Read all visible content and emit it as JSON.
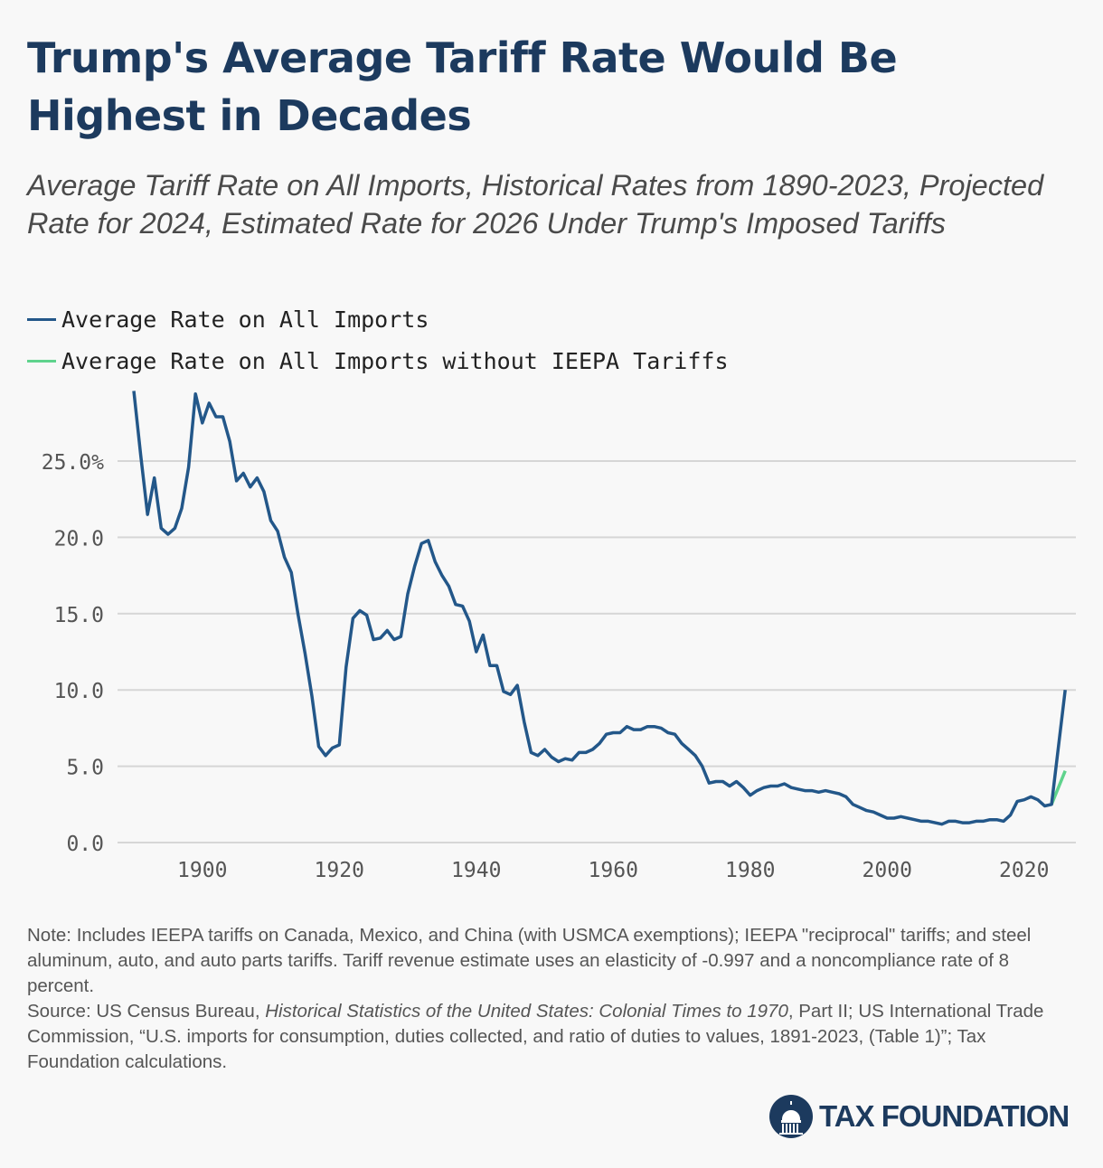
{
  "title": "Trump's Average Tariff Rate Would Be Highest in Decades",
  "subtitle": "Average Tariff Rate on All Imports, Historical Rates from 1890-2023, Projected Rate for 2024, Estimated Rate for 2026 Under Trump's Imposed Tariffs",
  "notes": {
    "note": "Note: Includes IEEPA tariffs on Canada, Mexico, and China (with USMCA exemptions); IEEPA \"reciprocal\" tariffs; and steel aluminum, auto, and auto parts tariffs. Tariff revenue estimate uses an elasticity of -0.997 and a noncompliance rate of 8 percent.",
    "source_prefix": "Source: US Census Bureau, ",
    "source_italic": "Historical Statistics of the United States: Colonial Times to 1970",
    "source_suffix": ", Part II; US International Trade Commission, “U.S. imports for consumption, duties collected, and ratio of duties to values, 1891-2023, (Table 1)”; Tax Foundation calculations."
  },
  "logo": {
    "text": "TAX FOUNDATION",
    "icon": "capitol-dome-icon"
  },
  "chart_data": {
    "type": "line",
    "title": "",
    "xlabel": "",
    "ylabel": "",
    "xlim": [
      1890,
      2026
    ],
    "ylim": [
      0,
      30
    ],
    "grid": "horizontal",
    "legend": "top-left",
    "x_ticks": [
      "1900",
      "1920",
      "1940",
      "1960",
      "1980",
      "2000",
      "2020"
    ],
    "y_ticks": [
      "0.0",
      "5.0",
      "10.0",
      "15.0",
      "20.0",
      "25.0%"
    ],
    "y_tick_values": [
      0,
      5,
      10,
      15,
      20,
      25
    ],
    "series": [
      {
        "name": "Average Rate on All Imports",
        "color": "#235789",
        "points": [
          [
            1890,
            29.6
          ],
          [
            1891,
            25.4
          ],
          [
            1892,
            21.5
          ],
          [
            1893,
            23.9
          ],
          [
            1894,
            20.6
          ],
          [
            1895,
            20.2
          ],
          [
            1896,
            20.6
          ],
          [
            1897,
            21.9
          ],
          [
            1898,
            24.6
          ],
          [
            1899,
            29.4
          ],
          [
            1900,
            27.5
          ],
          [
            1901,
            28.8
          ],
          [
            1902,
            27.9
          ],
          [
            1903,
            27.9
          ],
          [
            1904,
            26.3
          ],
          [
            1905,
            23.7
          ],
          [
            1906,
            24.2
          ],
          [
            1907,
            23.3
          ],
          [
            1908,
            23.9
          ],
          [
            1909,
            23.0
          ],
          [
            1910,
            21.1
          ],
          [
            1911,
            20.4
          ],
          [
            1912,
            18.7
          ],
          [
            1913,
            17.7
          ],
          [
            1914,
            14.9
          ],
          [
            1915,
            12.4
          ],
          [
            1916,
            9.6
          ],
          [
            1917,
            6.3
          ],
          [
            1918,
            5.7
          ],
          [
            1919,
            6.2
          ],
          [
            1920,
            6.4
          ],
          [
            1921,
            11.5
          ],
          [
            1922,
            14.7
          ],
          [
            1923,
            15.2
          ],
          [
            1924,
            14.9
          ],
          [
            1925,
            13.3
          ],
          [
            1926,
            13.4
          ],
          [
            1927,
            13.9
          ],
          [
            1928,
            13.3
          ],
          [
            1929,
            13.5
          ],
          [
            1930,
            16.3
          ],
          [
            1931,
            18.1
          ],
          [
            1932,
            19.6
          ],
          [
            1933,
            19.8
          ],
          [
            1934,
            18.4
          ],
          [
            1935,
            17.5
          ],
          [
            1936,
            16.8
          ],
          [
            1937,
            15.6
          ],
          [
            1938,
            15.5
          ],
          [
            1939,
            14.5
          ],
          [
            1940,
            12.5
          ],
          [
            1941,
            13.6
          ],
          [
            1942,
            11.6
          ],
          [
            1943,
            11.6
          ],
          [
            1944,
            9.9
          ],
          [
            1945,
            9.7
          ],
          [
            1946,
            10.3
          ],
          [
            1947,
            7.9
          ],
          [
            1948,
            5.9
          ],
          [
            1949,
            5.7
          ],
          [
            1950,
            6.1
          ],
          [
            1951,
            5.6
          ],
          [
            1952,
            5.3
          ],
          [
            1953,
            5.5
          ],
          [
            1954,
            5.4
          ],
          [
            1955,
            5.9
          ],
          [
            1956,
            5.9
          ],
          [
            1957,
            6.1
          ],
          [
            1958,
            6.5
          ],
          [
            1959,
            7.1
          ],
          [
            1960,
            7.2
          ],
          [
            1961,
            7.2
          ],
          [
            1962,
            7.6
          ],
          [
            1963,
            7.4
          ],
          [
            1964,
            7.4
          ],
          [
            1965,
            7.6
          ],
          [
            1966,
            7.6
          ],
          [
            1967,
            7.5
          ],
          [
            1968,
            7.2
          ],
          [
            1969,
            7.1
          ],
          [
            1970,
            6.5
          ],
          [
            1971,
            6.1
          ],
          [
            1972,
            5.7
          ],
          [
            1973,
            5.0
          ],
          [
            1974,
            3.9
          ],
          [
            1975,
            4.0
          ],
          [
            1976,
            4.0
          ],
          [
            1977,
            3.7
          ],
          [
            1978,
            4.0
          ],
          [
            1979,
            3.6
          ],
          [
            1980,
            3.1
          ],
          [
            1981,
            3.4
          ],
          [
            1982,
            3.6
          ],
          [
            1983,
            3.7
          ],
          [
            1984,
            3.7
          ],
          [
            1985,
            3.85
          ],
          [
            1986,
            3.6
          ],
          [
            1987,
            3.5
          ],
          [
            1988,
            3.4
          ],
          [
            1989,
            3.4
          ],
          [
            1990,
            3.3
          ],
          [
            1991,
            3.4
          ],
          [
            1992,
            3.3
          ],
          [
            1993,
            3.2
          ],
          [
            1994,
            3.0
          ],
          [
            1995,
            2.5
          ],
          [
            1996,
            2.3
          ],
          [
            1997,
            2.1
          ],
          [
            1998,
            2.0
          ],
          [
            1999,
            1.8
          ],
          [
            2000,
            1.6
          ],
          [
            2001,
            1.6
          ],
          [
            2002,
            1.7
          ],
          [
            2003,
            1.6
          ],
          [
            2004,
            1.5
          ],
          [
            2005,
            1.4
          ],
          [
            2006,
            1.4
          ],
          [
            2007,
            1.3
          ],
          [
            2008,
            1.2
          ],
          [
            2009,
            1.4
          ],
          [
            2010,
            1.4
          ],
          [
            2011,
            1.3
          ],
          [
            2012,
            1.3
          ],
          [
            2013,
            1.4
          ],
          [
            2014,
            1.4
          ],
          [
            2015,
            1.5
          ],
          [
            2016,
            1.5
          ],
          [
            2017,
            1.4
          ],
          [
            2018,
            1.8
          ],
          [
            2019,
            2.7
          ],
          [
            2020,
            2.8
          ],
          [
            2021,
            3.0
          ],
          [
            2022,
            2.8
          ],
          [
            2023,
            2.4
          ],
          [
            2024,
            2.5
          ],
          [
            2026,
            10.0
          ]
        ]
      },
      {
        "name": "Average Rate on All Imports without IEEPA Tariffs",
        "color": "#5fd38d",
        "points": [
          [
            2024,
            2.5
          ],
          [
            2026,
            4.7
          ]
        ]
      }
    ]
  }
}
